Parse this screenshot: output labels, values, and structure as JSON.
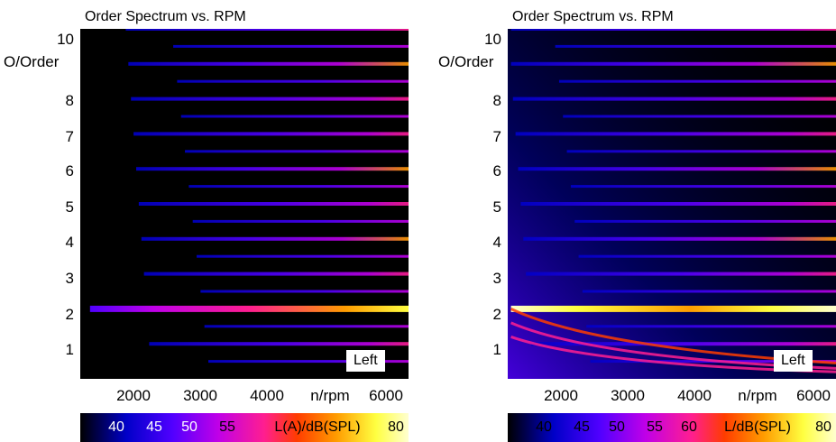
{
  "chart_data": [
    {
      "type": "heatmap",
      "title": "Order Spectrum vs. RPM",
      "xlabel": "n/rpm",
      "ylabel": "O/Order",
      "xlim": [
        1200,
        6250
      ],
      "ylim": [
        0,
        10
      ],
      "xticks": [
        2000,
        3000,
        4000,
        6000
      ],
      "yticks": [
        1,
        2,
        3,
        4,
        5,
        6,
        7,
        8,
        10
      ],
      "orders": [
        0.5,
        1,
        1.5,
        2,
        2.5,
        3,
        3.5,
        4,
        4.5,
        5,
        5.5,
        6,
        6.5,
        7,
        7.5,
        8,
        8.5,
        9,
        9.5,
        10
      ],
      "annotation": "Left",
      "colorbar": {
        "label": "L(A)/dB(SPL)",
        "ticks": [
          "40",
          "45",
          "50",
          "55",
          "80"
        ]
      },
      "colors": [
        "#000000",
        "#0000c8",
        "#5000ff",
        "#c000e8",
        "#ff1e90",
        "#ff3c00",
        "#ff9c00",
        "#ffff40",
        "#ffffd0"
      ]
    },
    {
      "type": "heatmap",
      "title": "Order Spectrum vs. RPM",
      "xlabel": "n/rpm",
      "ylabel": "",
      "xlim": [
        1200,
        6250
      ],
      "ylim": [
        0,
        10
      ],
      "xticks": [
        2000,
        3000,
        4000,
        6000
      ],
      "yticks": [
        1,
        2,
        3,
        4,
        5,
        6,
        7,
        8,
        10
      ],
      "orders": [
        0.5,
        1,
        1.5,
        2,
        2.5,
        3,
        3.5,
        4,
        4.5,
        5,
        5.5,
        6,
        6.5,
        7,
        7.5,
        8,
        8.5,
        9,
        9.5,
        10
      ],
      "annotation": "Left",
      "colorbar": {
        "label": "L/dB(SPL)",
        "ticks": [
          "40",
          "45",
          "50",
          "55",
          "60",
          "80"
        ]
      },
      "colors": [
        "#000000",
        "#0000c8",
        "#5000ff",
        "#c000e8",
        "#ff1e90",
        "#ff3c00",
        "#ff9c00",
        "#ffff40",
        "#ffffd0"
      ]
    }
  ]
}
